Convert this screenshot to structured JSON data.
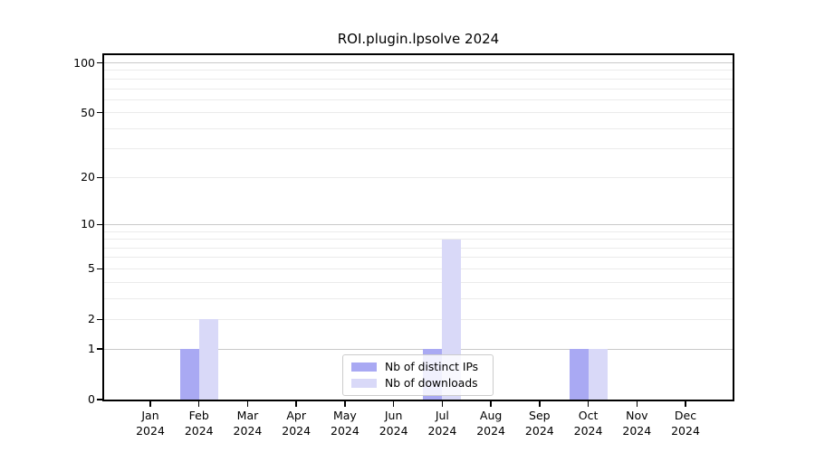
{
  "chart_title": "ROI.plugin.lpsolve 2024",
  "chart_data": {
    "type": "bar",
    "title": "ROI.plugin.lpsolve 2024",
    "scale": "log1p",
    "categories": [
      "Jan",
      "Feb",
      "Mar",
      "Apr",
      "May",
      "Jun",
      "Jul",
      "Aug",
      "Sep",
      "Oct",
      "Nov",
      "Dec"
    ],
    "year_label": "2024",
    "series": [
      {
        "name": "Nb of distinct IPs",
        "color": "#a9a9f3",
        "values": [
          0,
          1,
          0,
          0,
          0,
          0,
          1,
          0,
          0,
          1,
          0,
          0
        ]
      },
      {
        "name": "Nb of downloads",
        "color": "#d9d9f8",
        "values": [
          0,
          2,
          0,
          0,
          0,
          0,
          8,
          0,
          0,
          1,
          0,
          0
        ]
      }
    ],
    "yticks": [
      0,
      1,
      2,
      5,
      10,
      20,
      50,
      100
    ],
    "ylim": [
      0,
      115
    ],
    "grid": "on",
    "legend_position": "lower center",
    "xlabel": "",
    "ylabel": ""
  },
  "colors": {
    "background": "#ffffff",
    "axis": "#000000",
    "grid_major": "#c9c9c9",
    "grid_minor": "#ebebeb",
    "text": "#000000",
    "legend_border": "#cccccc"
  }
}
